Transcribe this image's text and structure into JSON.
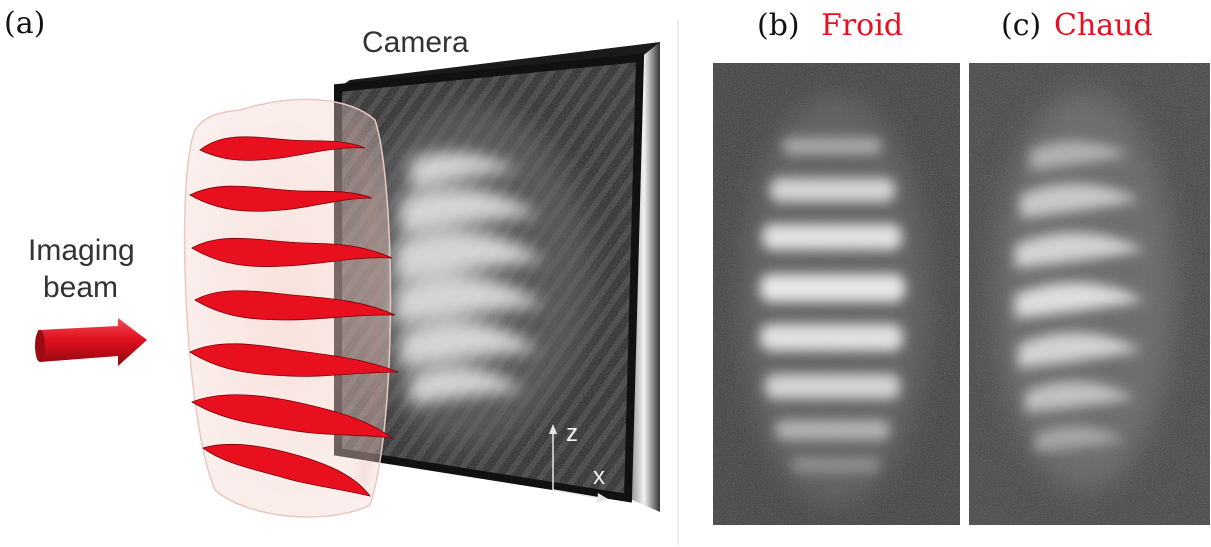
{
  "panels": {
    "a": {
      "label": "(a)",
      "camera_label": "Camera",
      "beam_label_line1": "Imaging",
      "beam_label_line2": "beam",
      "axis_z": "z",
      "axis_x": "x",
      "beam_color": "#e8101e"
    },
    "b": {
      "label": "(b)",
      "title": "Froid",
      "title_color": "#e8101e"
    },
    "c": {
      "label": "(c)",
      "title": "Chaud",
      "title_color": "#e8101e"
    }
  }
}
